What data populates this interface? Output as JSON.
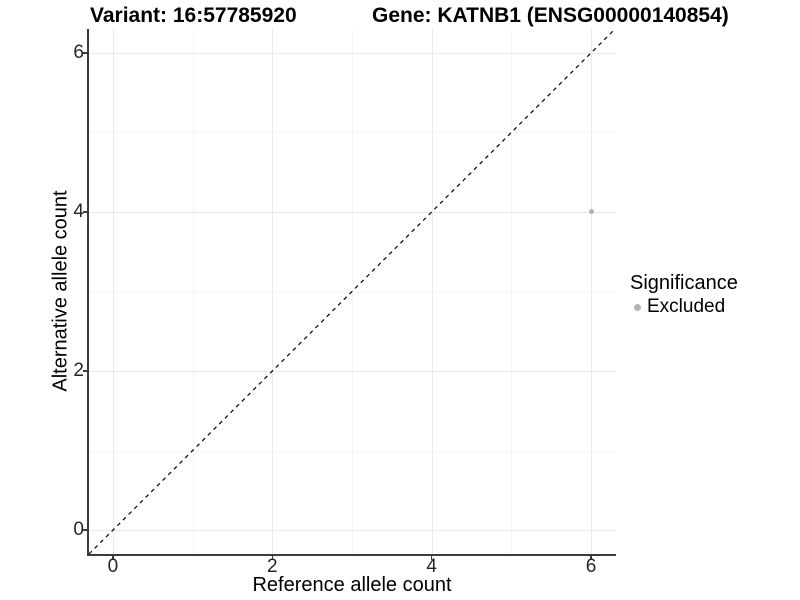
{
  "titles": {
    "variant": "Variant: 16:57785920",
    "gene": "Gene: KATNB1 (ENSG00000140854)"
  },
  "axes": {
    "x": {
      "label": "Reference allele count"
    },
    "y": {
      "label": "Alternative allele count"
    }
  },
  "legend": {
    "title": "Significance",
    "items": [
      {
        "label": "Excluded",
        "color": "#b4b4b4"
      }
    ]
  },
  "chart_data": {
    "type": "scatter",
    "title": "Variant: 16:57785920 | Gene: KATNB1 (ENSG00000140854)",
    "xlabel": "Reference allele count",
    "ylabel": "Alternative allele count",
    "xlim": [
      -0.3,
      6.3
    ],
    "ylim": [
      -0.3,
      6.3
    ],
    "x_ticks": [
      0,
      2,
      4,
      6
    ],
    "y_ticks": [
      0,
      2,
      4,
      6
    ],
    "x_minor_ticks": [
      1,
      3,
      5
    ],
    "y_minor_ticks": [
      1,
      3,
      5
    ],
    "grid": "major+minor",
    "legend_position": "right",
    "series": [
      {
        "name": "Excluded",
        "color": "#b4b4b4",
        "points": [
          {
            "x": 6,
            "y": 4
          }
        ]
      }
    ],
    "reference_line": {
      "kind": "identity",
      "slope": 1,
      "intercept": 0,
      "style": "dashed",
      "color": "#000000"
    },
    "colors": {
      "grid_major": "#e9e9e9",
      "grid_minor": "#f5f5f5",
      "axis_line": "#3b3b3b",
      "tick_text": "#262626"
    }
  }
}
